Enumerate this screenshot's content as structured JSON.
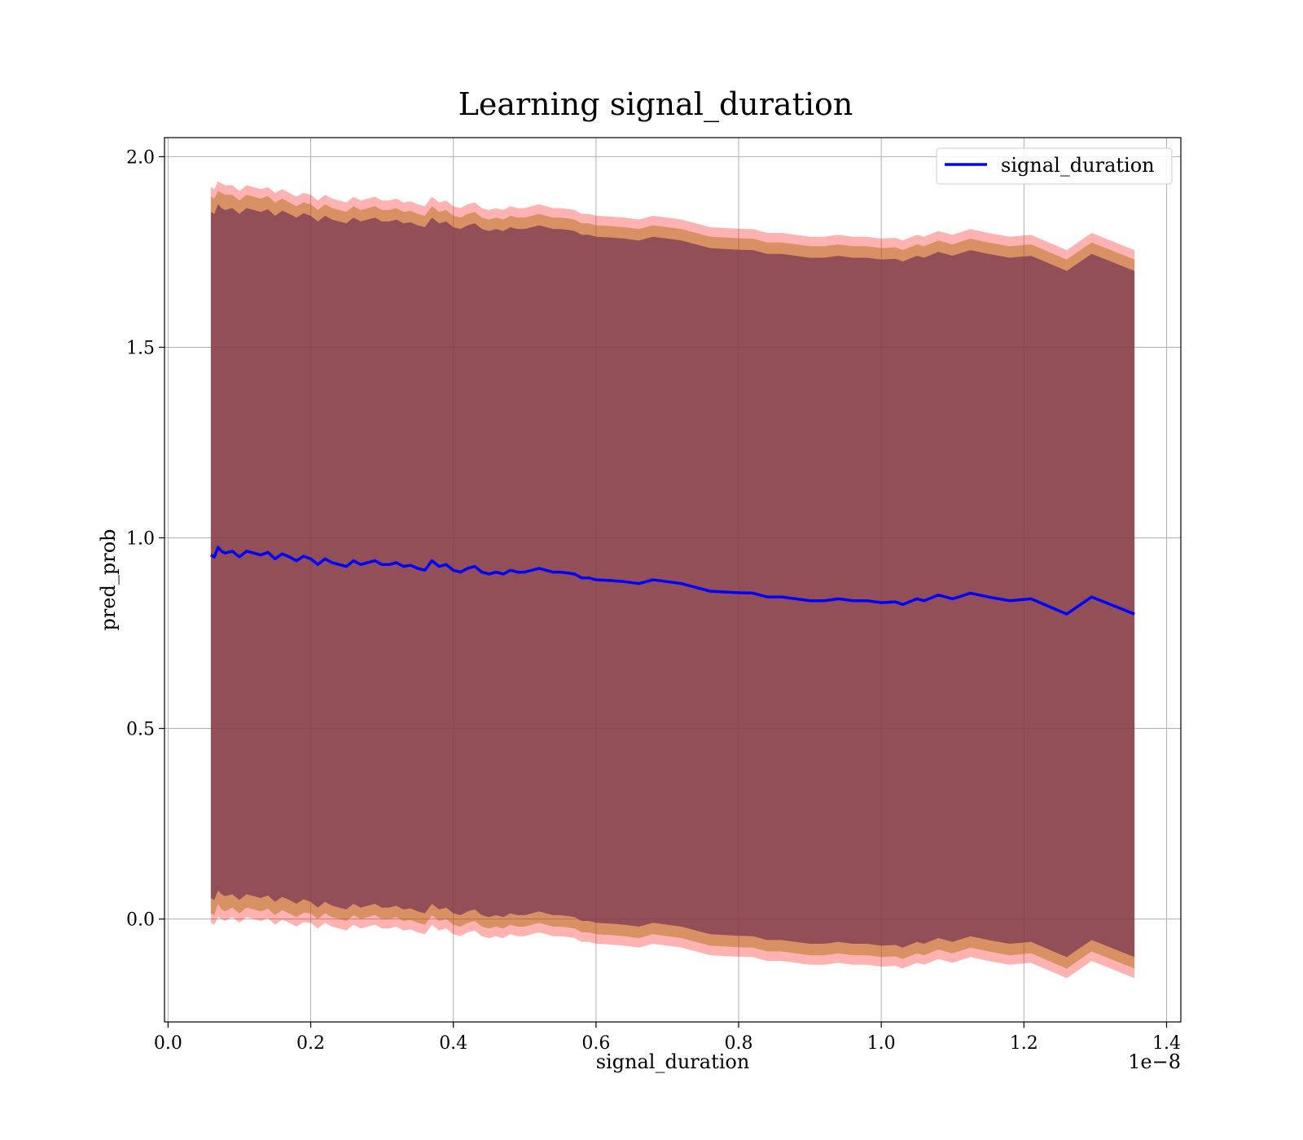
{
  "chart_data": {
    "type": "line",
    "title": "Learning signal_duration",
    "xlabel": "signal_duration",
    "ylabel": "pred_prob",
    "x_offset_label": "1e−8",
    "xlim": [
      -0.005,
      1.42
    ],
    "ylim": [
      -0.27,
      2.05
    ],
    "x_ticks": [
      0.0,
      0.2,
      0.4,
      0.6,
      0.8,
      1.0,
      1.2,
      1.4
    ],
    "x_tick_labels": [
      "0.0",
      "0.2",
      "0.4",
      "0.6",
      "0.8",
      "1.0",
      "1.2",
      "1.4"
    ],
    "y_ticks": [
      0.0,
      0.5,
      1.0,
      1.5,
      2.0
    ],
    "y_tick_labels": [
      "0.0",
      "0.5",
      "1.0",
      "1.5",
      "2.0"
    ],
    "grid": true,
    "legend_position": "top-right",
    "series": [
      {
        "name": "signal_duration",
        "color": "#0000ff",
        "x": [
          0.06,
          0.065,
          0.07,
          0.075,
          0.08,
          0.09,
          0.1,
          0.11,
          0.12,
          0.13,
          0.14,
          0.15,
          0.16,
          0.17,
          0.18,
          0.19,
          0.2,
          0.21,
          0.22,
          0.23,
          0.24,
          0.25,
          0.26,
          0.27,
          0.28,
          0.29,
          0.3,
          0.31,
          0.32,
          0.33,
          0.34,
          0.35,
          0.36,
          0.37,
          0.38,
          0.39,
          0.4,
          0.41,
          0.42,
          0.43,
          0.44,
          0.45,
          0.46,
          0.47,
          0.48,
          0.49,
          0.5,
          0.51,
          0.52,
          0.53,
          0.54,
          0.55,
          0.56,
          0.57,
          0.58,
          0.59,
          0.6,
          0.62,
          0.64,
          0.66,
          0.68,
          0.7,
          0.72,
          0.74,
          0.76,
          0.78,
          0.8,
          0.82,
          0.84,
          0.86,
          0.88,
          0.9,
          0.92,
          0.94,
          0.96,
          0.98,
          1.0,
          1.02,
          1.03,
          1.05,
          1.06,
          1.08,
          1.1,
          1.125,
          1.15,
          1.18,
          1.21,
          1.26,
          1.295,
          1.355
        ],
        "y": [
          0.955,
          0.95,
          0.975,
          0.965,
          0.96,
          0.965,
          0.95,
          0.965,
          0.96,
          0.955,
          0.962,
          0.945,
          0.958,
          0.95,
          0.94,
          0.952,
          0.945,
          0.93,
          0.945,
          0.935,
          0.93,
          0.925,
          0.94,
          0.93,
          0.935,
          0.94,
          0.93,
          0.93,
          0.935,
          0.925,
          0.928,
          0.92,
          0.915,
          0.94,
          0.925,
          0.93,
          0.915,
          0.91,
          0.92,
          0.925,
          0.91,
          0.905,
          0.91,
          0.905,
          0.915,
          0.91,
          0.91,
          0.915,
          0.92,
          0.915,
          0.91,
          0.91,
          0.908,
          0.905,
          0.895,
          0.895,
          0.89,
          0.888,
          0.885,
          0.88,
          0.89,
          0.885,
          0.88,
          0.87,
          0.86,
          0.858,
          0.856,
          0.855,
          0.845,
          0.845,
          0.84,
          0.835,
          0.835,
          0.84,
          0.835,
          0.835,
          0.83,
          0.832,
          0.825,
          0.84,
          0.835,
          0.85,
          0.84,
          0.855,
          0.845,
          0.835,
          0.84,
          0.8,
          0.845,
          0.8
        ]
      }
    ],
    "bands": [
      {
        "color": "#ff0000",
        "opacity": 0.3,
        "upper": [
          1.92,
          1.915,
          1.935,
          1.93,
          1.925,
          1.925,
          1.91,
          1.925,
          1.92,
          1.915,
          1.92,
          1.905,
          1.915,
          1.905,
          1.895,
          1.905,
          1.9,
          1.885,
          1.9,
          1.89,
          1.885,
          1.88,
          1.895,
          1.885,
          1.89,
          1.895,
          1.885,
          1.885,
          1.89,
          1.88,
          1.883,
          1.875,
          1.87,
          1.895,
          1.88,
          1.885,
          1.87,
          1.865,
          1.875,
          1.88,
          1.865,
          1.86,
          1.865,
          1.86,
          1.87,
          1.865,
          1.865,
          1.87,
          1.875,
          1.87,
          1.865,
          1.865,
          1.863,
          1.86,
          1.85,
          1.85,
          1.845,
          1.843,
          1.84,
          1.835,
          1.845,
          1.84,
          1.835,
          1.825,
          1.815,
          1.813,
          1.811,
          1.81,
          1.8,
          1.8,
          1.795,
          1.79,
          1.79,
          1.795,
          1.79,
          1.79,
          1.785,
          1.787,
          1.78,
          1.795,
          1.79,
          1.805,
          1.795,
          1.81,
          1.8,
          1.79,
          1.795,
          1.755,
          1.8,
          1.755
        ],
        "lower": [
          -0.01,
          -0.015,
          0.005,
          0.0,
          -0.005,
          0.005,
          -0.01,
          0.005,
          0.0,
          -0.005,
          0.002,
          -0.015,
          -0.002,
          -0.01,
          -0.02,
          -0.008,
          -0.01,
          -0.025,
          -0.01,
          -0.02,
          -0.025,
          -0.03,
          -0.015,
          -0.025,
          -0.02,
          -0.015,
          -0.025,
          -0.025,
          -0.02,
          -0.03,
          -0.027,
          -0.035,
          -0.04,
          -0.015,
          -0.03,
          -0.025,
          -0.04,
          -0.045,
          -0.035,
          -0.03,
          -0.045,
          -0.05,
          -0.045,
          -0.05,
          -0.04,
          -0.045,
          -0.045,
          -0.04,
          -0.035,
          -0.04,
          -0.045,
          -0.045,
          -0.047,
          -0.05,
          -0.06,
          -0.06,
          -0.065,
          -0.067,
          -0.07,
          -0.075,
          -0.065,
          -0.07,
          -0.075,
          -0.085,
          -0.095,
          -0.097,
          -0.099,
          -0.1,
          -0.11,
          -0.11,
          -0.115,
          -0.12,
          -0.12,
          -0.115,
          -0.12,
          -0.12,
          -0.125,
          -0.123,
          -0.13,
          -0.115,
          -0.12,
          -0.105,
          -0.115,
          -0.1,
          -0.11,
          -0.12,
          -0.115,
          -0.155,
          -0.11,
          -0.155
        ]
      },
      {
        "color": "#aa6600",
        "opacity": 0.45,
        "upper": [
          1.895,
          1.89,
          1.91,
          1.905,
          1.9,
          1.9,
          1.885,
          1.9,
          1.895,
          1.89,
          1.897,
          1.88,
          1.89,
          1.88,
          1.87,
          1.88,
          1.875,
          1.86,
          1.875,
          1.865,
          1.86,
          1.855,
          1.87,
          1.86,
          1.865,
          1.87,
          1.86,
          1.86,
          1.865,
          1.855,
          1.858,
          1.85,
          1.845,
          1.87,
          1.855,
          1.86,
          1.845,
          1.84,
          1.85,
          1.855,
          1.84,
          1.835,
          1.84,
          1.835,
          1.845,
          1.84,
          1.84,
          1.845,
          1.85,
          1.845,
          1.84,
          1.84,
          1.838,
          1.835,
          1.825,
          1.825,
          1.82,
          1.818,
          1.815,
          1.81,
          1.82,
          1.815,
          1.81,
          1.8,
          1.79,
          1.788,
          1.786,
          1.785,
          1.775,
          1.775,
          1.77,
          1.765,
          1.765,
          1.77,
          1.765,
          1.765,
          1.76,
          1.762,
          1.755,
          1.77,
          1.765,
          1.78,
          1.77,
          1.785,
          1.775,
          1.765,
          1.77,
          1.73,
          1.775,
          1.73
        ],
        "lower": [
          0.015,
          0.01,
          0.04,
          0.025,
          0.02,
          0.03,
          0.015,
          0.03,
          0.025,
          0.02,
          0.027,
          0.01,
          0.023,
          0.015,
          0.005,
          0.017,
          0.015,
          0.0,
          0.015,
          0.005,
          0.0,
          -0.005,
          0.01,
          0.0,
          0.005,
          0.01,
          0.0,
          0.0,
          0.005,
          -0.005,
          -0.002,
          -0.01,
          -0.015,
          0.01,
          -0.005,
          0.0,
          -0.015,
          -0.02,
          -0.01,
          -0.005,
          -0.02,
          -0.025,
          -0.02,
          -0.025,
          -0.015,
          -0.02,
          -0.02,
          -0.015,
          -0.01,
          -0.015,
          -0.02,
          -0.02,
          -0.022,
          -0.025,
          -0.035,
          -0.035,
          -0.04,
          -0.042,
          -0.045,
          -0.05,
          -0.04,
          -0.045,
          -0.05,
          -0.06,
          -0.07,
          -0.072,
          -0.074,
          -0.075,
          -0.085,
          -0.085,
          -0.09,
          -0.095,
          -0.095,
          -0.09,
          -0.095,
          -0.095,
          -0.1,
          -0.098,
          -0.105,
          -0.09,
          -0.095,
          -0.08,
          -0.09,
          -0.075,
          -0.085,
          -0.095,
          -0.09,
          -0.13,
          -0.085,
          -0.13
        ]
      },
      {
        "color": "#7a3a55",
        "opacity": 0.75,
        "upper": [
          1.855,
          1.85,
          1.875,
          1.865,
          1.86,
          1.865,
          1.85,
          1.865,
          1.86,
          1.855,
          1.862,
          1.845,
          1.858,
          1.85,
          1.84,
          1.852,
          1.845,
          1.83,
          1.845,
          1.835,
          1.83,
          1.825,
          1.84,
          1.83,
          1.835,
          1.84,
          1.83,
          1.83,
          1.835,
          1.825,
          1.828,
          1.82,
          1.815,
          1.84,
          1.825,
          1.83,
          1.815,
          1.81,
          1.82,
          1.825,
          1.81,
          1.805,
          1.81,
          1.805,
          1.815,
          1.81,
          1.81,
          1.815,
          1.82,
          1.815,
          1.81,
          1.81,
          1.808,
          1.805,
          1.795,
          1.795,
          1.79,
          1.788,
          1.785,
          1.78,
          1.79,
          1.785,
          1.78,
          1.77,
          1.76,
          1.758,
          1.756,
          1.755,
          1.745,
          1.745,
          1.74,
          1.735,
          1.735,
          1.74,
          1.735,
          1.735,
          1.73,
          1.732,
          1.725,
          1.74,
          1.735,
          1.75,
          1.74,
          1.755,
          1.745,
          1.735,
          1.74,
          1.7,
          1.745,
          1.7
        ],
        "lower": [
          0.055,
          0.05,
          0.075,
          0.065,
          0.06,
          0.065,
          0.05,
          0.065,
          0.06,
          0.055,
          0.062,
          0.045,
          0.058,
          0.05,
          0.04,
          0.052,
          0.045,
          0.03,
          0.045,
          0.035,
          0.03,
          0.025,
          0.04,
          0.03,
          0.035,
          0.04,
          0.03,
          0.03,
          0.035,
          0.025,
          0.028,
          0.02,
          0.015,
          0.04,
          0.025,
          0.03,
          0.015,
          0.01,
          0.02,
          0.025,
          0.01,
          0.005,
          0.01,
          0.005,
          0.015,
          0.01,
          0.01,
          0.015,
          0.02,
          0.015,
          0.01,
          0.01,
          0.008,
          0.005,
          -0.005,
          -0.005,
          -0.01,
          -0.012,
          -0.015,
          -0.02,
          -0.01,
          -0.015,
          -0.02,
          -0.03,
          -0.04,
          -0.042,
          -0.044,
          -0.045,
          -0.055,
          -0.055,
          -0.06,
          -0.065,
          -0.065,
          -0.06,
          -0.065,
          -0.065,
          -0.07,
          -0.068,
          -0.075,
          -0.06,
          -0.065,
          -0.05,
          -0.06,
          -0.045,
          -0.055,
          -0.065,
          -0.06,
          -0.1,
          -0.055,
          -0.1
        ]
      }
    ]
  }
}
